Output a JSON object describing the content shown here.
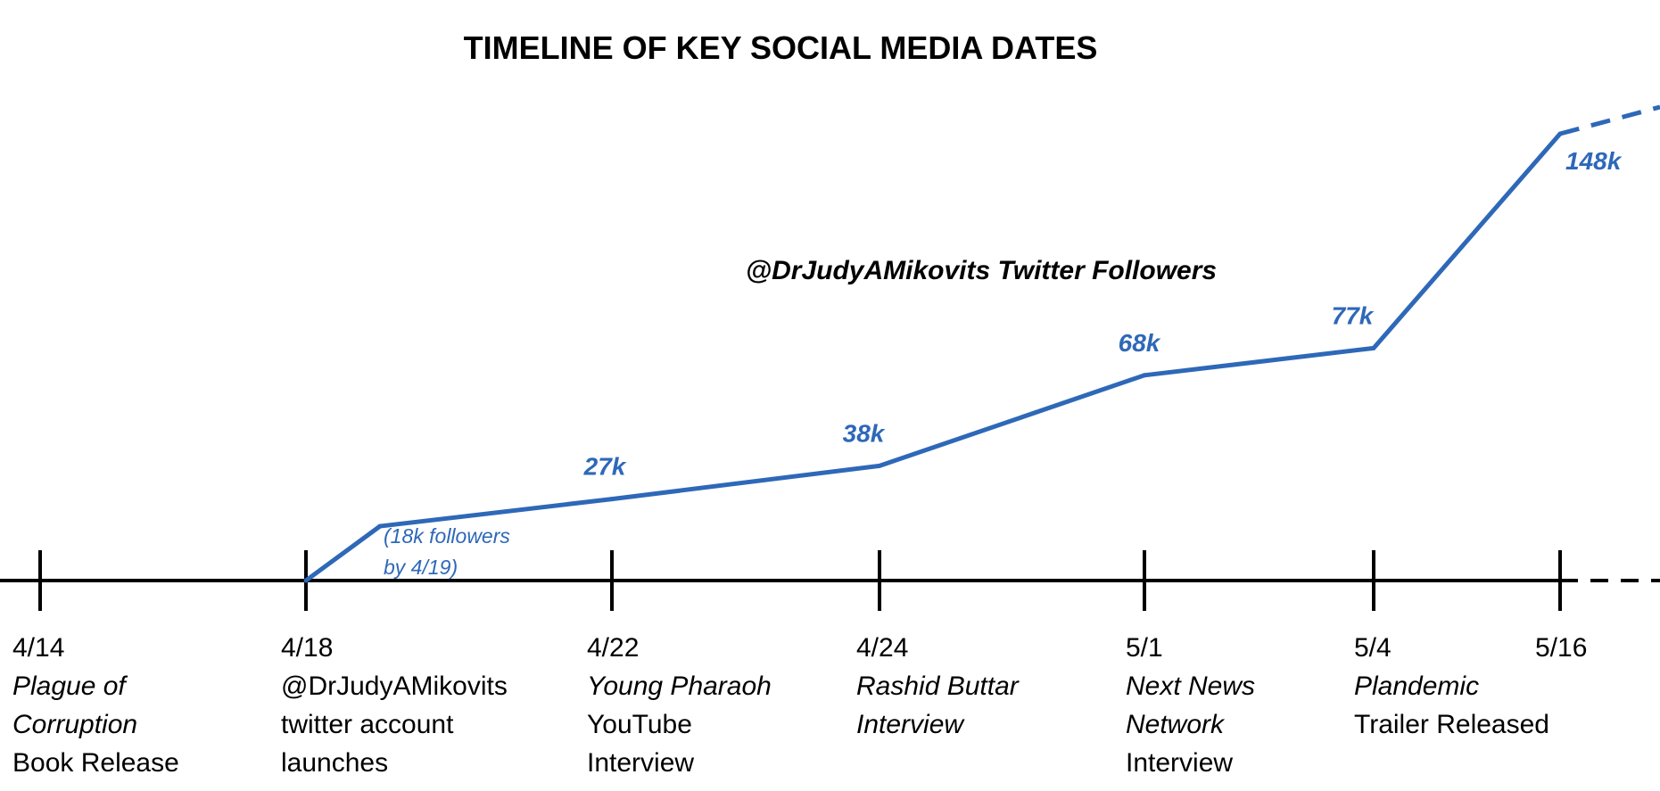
{
  "chart_data": {
    "type": "line",
    "title": "TIMELINE OF KEY SOCIAL MEDIA DATES",
    "color": "#2e68b8",
    "series": [
      {
        "name": "@DrJudyAMikovits Twitter Followers",
        "points": [
          {
            "x": "4/18",
            "y": 0
          },
          {
            "x": "4/19",
            "y": 18000
          },
          {
            "x": "4/22",
            "y": 27000,
            "label": "27k"
          },
          {
            "x": "4/24",
            "y": 38000,
            "label": "38k"
          },
          {
            "x": "5/1",
            "y": 68000,
            "label": "68k"
          },
          {
            "x": "5/4",
            "y": 77000,
            "label": "77k"
          },
          {
            "x": "5/16",
            "y": 148000,
            "label": "148k"
          }
        ],
        "note": [
          "(18k followers",
          "by 4/19)"
        ]
      }
    ],
    "timeline": [
      {
        "date": "4/14",
        "lines": [
          {
            "text": "Plague of",
            "italic": true
          },
          {
            "text": "Corruption",
            "italic": true
          },
          {
            "text": "Book Release",
            "italic": false
          }
        ]
      },
      {
        "date": "4/18",
        "lines": [
          {
            "text": "@DrJudyAMikovits",
            "italic": false
          },
          {
            "text": "twitter account",
            "italic": false
          },
          {
            "text": "launches",
            "italic": false
          }
        ]
      },
      {
        "date": "4/22",
        "lines": [
          {
            "text": "Young Pharaoh",
            "italic": true
          },
          {
            "text": "YouTube",
            "italic": false
          },
          {
            "text": "Interview",
            "italic": false
          }
        ]
      },
      {
        "date": "4/24",
        "lines": [
          {
            "text": "Rashid Buttar",
            "italic": true
          },
          {
            "text": "Interview",
            "italic": true
          }
        ]
      },
      {
        "date": "5/1",
        "lines": [
          {
            "text": "Next News",
            "italic": true
          },
          {
            "text": "Network",
            "italic": true
          },
          {
            "text": "Interview",
            "italic": false
          }
        ]
      },
      {
        "date": "5/4",
        "lines": [
          {
            "text": "Plandemic",
            "italic": true
          },
          {
            "text": "Trailer Released",
            "italic": false
          }
        ]
      },
      {
        "date": "5/16",
        "lines": []
      }
    ],
    "continues_beyond_last_date": true,
    "grid": false,
    "legend": "none"
  }
}
